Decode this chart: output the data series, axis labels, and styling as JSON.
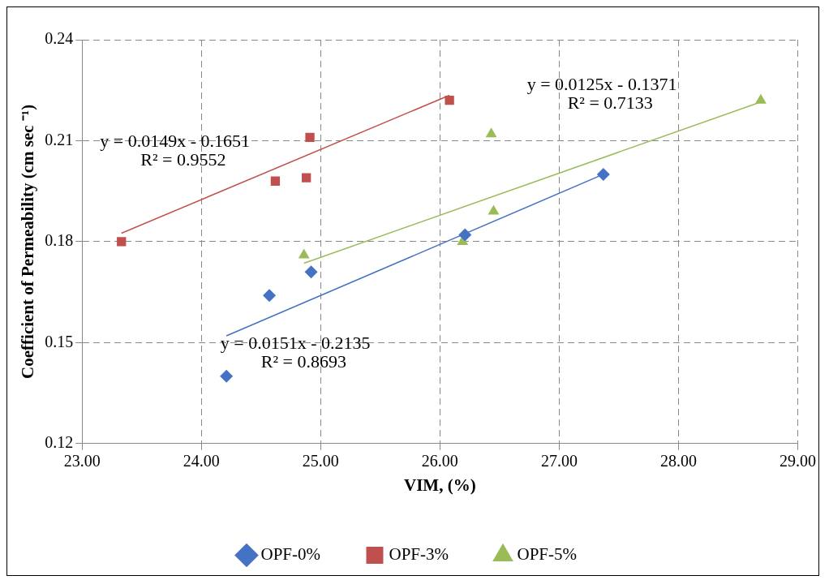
{
  "chart_data": {
    "type": "scatter",
    "xlabel": "VIM, (%)",
    "ylabel": "Coefficient of Permeability (cm sec ⁻¹)",
    "xlim": [
      23,
      29
    ],
    "xticks": [
      {
        "value": 23,
        "label": "23.00"
      },
      {
        "value": 24,
        "label": "24.00"
      },
      {
        "value": 25,
        "label": "25.00"
      },
      {
        "value": 26,
        "label": "26.00"
      },
      {
        "value": 27,
        "label": "27.00"
      },
      {
        "value": 28,
        "label": "28.00"
      },
      {
        "value": 29,
        "label": "29.00"
      }
    ],
    "ylim": [
      0.12,
      0.24
    ],
    "yticks": [
      0.12,
      0.15,
      0.18,
      0.21,
      0.24
    ],
    "grid": true,
    "legend": "bottom",
    "series": [
      {
        "name": "OPF-0%",
        "color": "#4472c4",
        "marker": "diamond",
        "x": [
          24.21,
          24.57,
          24.92,
          26.21,
          27.37
        ],
        "values": [
          0.14,
          0.164,
          0.171,
          0.182,
          0.2
        ]
      },
      {
        "name": "OPF-3%",
        "color": "#c0504d",
        "marker": "square",
        "x": [
          23.33,
          24.62,
          24.88,
          24.91,
          26.08
        ],
        "values": [
          0.18,
          0.198,
          0.199,
          0.211,
          0.222
        ]
      },
      {
        "name": "OPF-5%",
        "color": "#9bbb59",
        "marker": "triangle",
        "x": [
          24.86,
          26.19,
          26.45,
          26.43,
          28.69
        ],
        "values": [
          0.176,
          0.18,
          0.189,
          0.212,
          0.222
        ]
      },
      {
        "type": "line",
        "color": "#4472c4",
        "x": [
          24.21,
          27.37
        ],
        "values": [
          0.152,
          0.2
        ]
      },
      {
        "type": "line",
        "color": "#c0504d",
        "x": [
          23.33,
          26.08
        ],
        "values": [
          0.1825,
          0.2235
        ]
      },
      {
        "type": "line",
        "color": "#9bbb59",
        "x": [
          24.86,
          28.69
        ],
        "values": [
          0.1736,
          0.2215
        ]
      }
    ],
    "annotations": [
      "y = 0.0149x - 0.1651",
      "R² = 0.9552",
      "y = 0.0125x - 0.1371",
      "R² = 0.7133",
      "y = 0.0151x - 0.2135",
      "R² = 0.8693"
    ]
  }
}
